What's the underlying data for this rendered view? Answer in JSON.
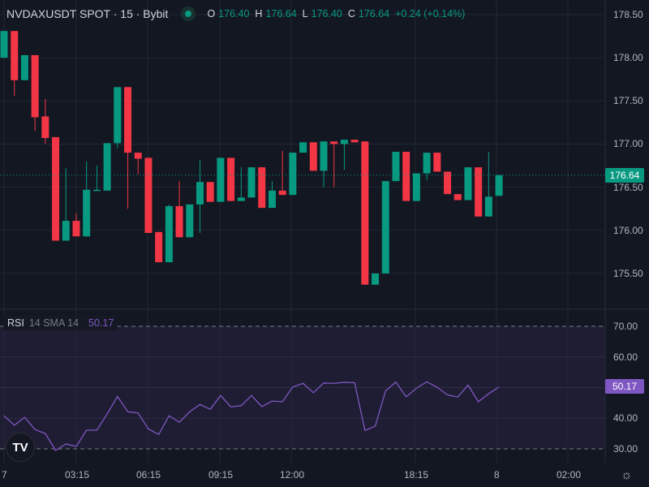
{
  "header": {
    "symbol": "NVDAXUSDT SPOT · 15 · Bybit",
    "status_icon": "market-open-dot",
    "ohlc": [
      {
        "key": "O",
        "value": "176.40"
      },
      {
        "key": "H",
        "value": "176.64"
      },
      {
        "key": "L",
        "value": "176.40"
      },
      {
        "key": "C",
        "value": "176.64"
      }
    ],
    "change": "+0.24 (+0.14%)"
  },
  "rsi_legend": {
    "name": "RSI",
    "params": "14 SMA 14",
    "value": "50.17"
  },
  "colors": {
    "up": "#089981",
    "down": "#f23645",
    "rsi": "#7e57c2",
    "background": "#131722",
    "rsi_band": "#1f1d33"
  },
  "price_axis": {
    "ticks": [
      "178.50",
      "178.00",
      "177.50",
      "177.00",
      "176.50",
      "176.00",
      "175.50"
    ],
    "current": "176.64"
  },
  "rsi_axis": {
    "ticks": [
      "70.00",
      "60.00",
      "40.00",
      "30.00"
    ],
    "current": "50.17"
  },
  "time_axis": {
    "ticks": [
      "7",
      "03:15",
      "06:15",
      "09:15",
      "12:00",
      "18:15",
      "8",
      "02:00"
    ]
  },
  "chart_data": [
    {
      "type": "candlestick",
      "ylim": [
        175.3,
        178.6
      ],
      "last_price": 176.64,
      "ohlc": [
        [
          178.0,
          178.31,
          178.0,
          178.31
        ],
        [
          178.31,
          178.31,
          177.56,
          177.74
        ],
        [
          177.74,
          178.03,
          177.74,
          178.03
        ],
        [
          178.03,
          178.03,
          177.15,
          177.31
        ],
        [
          177.32,
          177.52,
          177.0,
          177.07
        ],
        [
          177.08,
          177.08,
          175.88,
          175.88
        ],
        [
          175.88,
          176.72,
          175.88,
          176.11
        ],
        [
          176.11,
          176.2,
          175.93,
          175.93
        ],
        [
          175.93,
          176.8,
          175.93,
          176.47
        ],
        [
          176.46,
          176.75,
          176.46,
          176.47
        ],
        [
          176.46,
          177.01,
          176.46,
          177.01
        ],
        [
          177.01,
          177.66,
          176.95,
          177.66
        ],
        [
          177.66,
          177.66,
          176.25,
          176.9
        ],
        [
          176.9,
          176.9,
          176.65,
          176.83
        ],
        [
          176.84,
          176.84,
          175.97,
          175.97
        ],
        [
          175.98,
          175.98,
          175.63,
          175.63
        ],
        [
          175.63,
          176.3,
          175.63,
          176.28
        ],
        [
          176.28,
          176.57,
          175.92,
          175.92
        ],
        [
          175.92,
          176.3,
          175.92,
          176.3
        ],
        [
          176.3,
          176.82,
          175.97,
          176.56
        ],
        [
          176.56,
          176.56,
          176.33,
          176.33
        ],
        [
          176.33,
          176.84,
          176.33,
          176.84
        ],
        [
          176.84,
          176.84,
          176.34,
          176.34
        ],
        [
          176.34,
          176.73,
          176.34,
          176.38
        ],
        [
          176.38,
          176.73,
          176.38,
          176.73
        ],
        [
          176.73,
          176.73,
          176.26,
          176.26
        ],
        [
          176.26,
          176.57,
          176.26,
          176.46
        ],
        [
          176.46,
          176.92,
          176.41,
          176.41
        ],
        [
          176.41,
          176.9,
          176.41,
          176.9
        ],
        [
          176.9,
          177.02,
          176.9,
          177.02
        ],
        [
          177.02,
          177.02,
          176.69,
          176.69
        ],
        [
          176.69,
          177.03,
          176.5,
          177.03
        ],
        [
          177.03,
          177.03,
          176.5,
          177.0
        ],
        [
          177.0,
          177.05,
          176.7,
          177.05
        ],
        [
          177.05,
          177.05,
          177.02,
          177.02
        ],
        [
          177.03,
          177.03,
          175.37,
          175.37
        ],
        [
          175.37,
          175.5,
          175.37,
          175.5
        ],
        [
          175.5,
          176.57,
          175.5,
          176.57
        ],
        [
          176.57,
          176.91,
          176.57,
          176.91
        ],
        [
          176.91,
          176.91,
          176.34,
          176.34
        ],
        [
          176.34,
          176.66,
          176.34,
          176.66
        ],
        [
          176.66,
          176.9,
          176.58,
          176.9
        ],
        [
          176.9,
          176.9,
          176.68,
          176.68
        ],
        [
          176.68,
          176.68,
          176.42,
          176.42
        ],
        [
          176.42,
          176.42,
          176.35,
          176.35
        ],
        [
          176.35,
          176.73,
          176.35,
          176.73
        ],
        [
          176.73,
          176.73,
          176.16,
          176.16
        ],
        [
          176.16,
          176.91,
          176.16,
          176.39
        ],
        [
          176.4,
          176.64,
          176.4,
          176.64
        ]
      ]
    },
    {
      "type": "line",
      "title": "RSI 14 SMA 14",
      "ylim": [
        30,
        70
      ],
      "bands": [
        30,
        70
      ],
      "values": [
        40.8,
        37.7,
        40.3,
        36.3,
        35.0,
        29.5,
        31.6,
        30.8,
        36.1,
        36.1,
        41.4,
        47.1,
        42.1,
        41.7,
        36.5,
        34.7,
        40.8,
        38.7,
        42.1,
        44.5,
        42.9,
        47.4,
        43.7,
        44.1,
        47.4,
        43.8,
        45.6,
        45.4,
        50.2,
        51.4,
        48.3,
        51.5,
        51.4,
        51.7,
        51.6,
        36.0,
        37.4,
        48.9,
        51.8,
        47.0,
        49.8,
        51.9,
        50.1,
        47.6,
        46.9,
        50.8,
        45.4,
        48.0,
        50.17
      ]
    }
  ]
}
